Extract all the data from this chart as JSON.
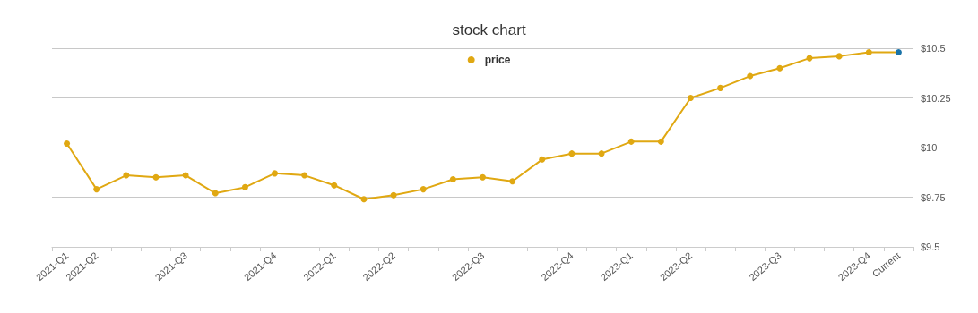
{
  "chart_data": {
    "type": "line",
    "title": "stock chart",
    "categories": [
      "2021-Q1",
      "2021-Q2",
      null,
      null,
      "2021-Q3",
      null,
      null,
      "2021-Q4",
      null,
      "2022-Q1",
      null,
      "2022-Q2",
      null,
      null,
      "2022-Q3",
      null,
      null,
      "2022-Q4",
      null,
      "2023-Q1",
      null,
      "2023-Q2",
      null,
      null,
      "2023-Q3",
      null,
      null,
      "2023-Q4",
      "Current"
    ],
    "series": [
      {
        "name": "price",
        "color": "#e0a812",
        "colors": [
          "#e0a812",
          "#e0a812",
          "#e0a812",
          "#e0a812",
          "#e0a812",
          "#e0a812",
          "#e0a812",
          "#e0a812",
          "#e0a812",
          "#e0a812",
          "#e0a812",
          "#e0a812",
          "#e0a812",
          "#e0a812",
          "#e0a812",
          "#e0a812",
          "#e0a812",
          "#e0a812",
          "#e0a812",
          "#e0a812",
          "#e0a812",
          "#e0a812",
          "#e0a812",
          "#e0a812",
          "#e0a812",
          "#e0a812",
          "#e0a812",
          "#e0a812",
          "#1a73a8"
        ],
        "values": [
          10.02,
          9.79,
          9.86,
          9.85,
          9.86,
          9.77,
          9.8,
          9.87,
          9.86,
          9.81,
          9.74,
          9.76,
          9.79,
          9.84,
          9.85,
          9.83,
          9.94,
          9.97,
          9.97,
          10.03,
          10.03,
          10.25,
          10.3,
          10.36,
          10.4,
          10.45,
          10.46,
          10.48,
          10.48
        ]
      }
    ],
    "ylim": [
      9.5,
      10.5
    ],
    "yticks": [
      {
        "value": 9.5,
        "label": "$9.5"
      },
      {
        "value": 9.75,
        "label": "$9.75"
      },
      {
        "value": 10,
        "label": "$10"
      },
      {
        "value": 10.25,
        "label": "$10.25"
      },
      {
        "value": 10.5,
        "label": "$10.5"
      }
    ],
    "grid": "y",
    "legend": "top",
    "marker": "circle",
    "line_style": "solid"
  }
}
